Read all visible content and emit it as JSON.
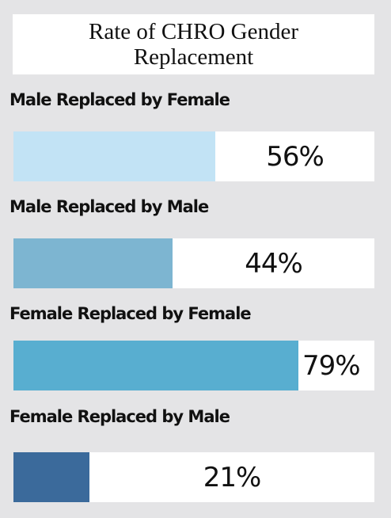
{
  "chart_data": {
    "type": "bar",
    "orientation": "horizontal",
    "title": "Rate of CHRO Gender Replacement",
    "categories": [
      "Male Replaced by Female",
      "Male Replaced by Male",
      "Female Replaced by Female",
      "Female Replaced by Male"
    ],
    "values": [
      56,
      44,
      79,
      21
    ],
    "value_labels": [
      "56%",
      "44%",
      "79%",
      "21%"
    ],
    "colors": [
      "#c2e3f5",
      "#7db5d1",
      "#58aed0",
      "#3b6a9b"
    ],
    "xlim": [
      0,
      100
    ]
  }
}
